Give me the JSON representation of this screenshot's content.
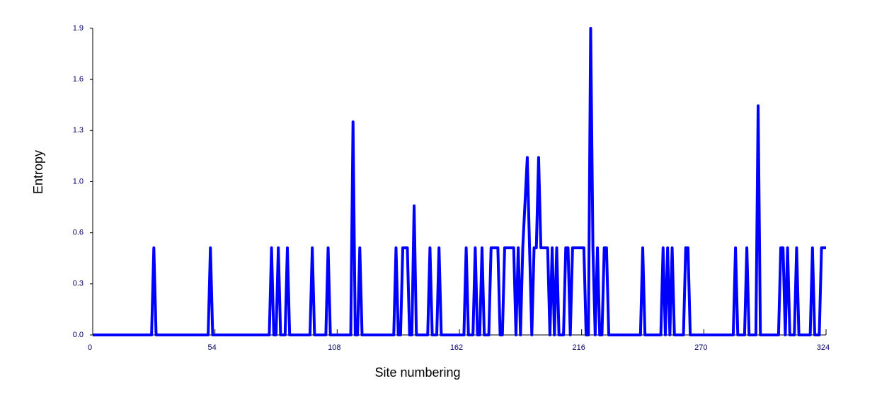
{
  "chart_data": {
    "type": "line",
    "x_label": "Site numbering",
    "y_label": "Entropy",
    "xlim": [
      0,
      324
    ],
    "ylim": [
      0,
      1.9
    ],
    "xticks": [
      0,
      54,
      108,
      162,
      216,
      270,
      324
    ],
    "yticks": [
      {
        "value": 0,
        "label": "0.0"
      },
      {
        "value": 0.3167,
        "label": "0.3"
      },
      {
        "value": 0.6333,
        "label": "0.6"
      },
      {
        "value": 0.95,
        "label": "1.0"
      },
      {
        "value": 1.2667,
        "label": "1.3"
      },
      {
        "value": 1.5833,
        "label": "1.6"
      },
      1.9
    ],
    "grid": false,
    "series": [
      {
        "color": "#0000ff",
        "x": [
          0,
          26,
          27,
          28,
          51,
          52,
          53,
          78,
          79,
          80,
          81,
          82,
          83,
          85,
          86,
          87,
          96,
          97,
          98,
          103,
          104,
          105,
          114,
          115,
          116,
          117,
          118,
          119,
          133,
          134,
          135,
          136,
          137,
          139,
          140,
          141,
          142,
          143,
          148,
          149,
          150,
          152,
          153,
          154,
          164,
          165,
          166,
          168,
          169,
          170,
          171,
          172,
          173,
          175,
          176,
          179,
          180,
          181,
          182,
          186,
          187,
          188,
          189,
          190,
          192,
          193,
          194,
          195,
          196,
          197,
          198,
          201,
          202,
          203,
          204,
          205,
          206,
          208,
          209,
          210,
          211,
          212,
          217,
          218,
          219,
          220,
          221,
          222,
          223,
          224,
          225,
          226,
          227,
          228,
          242,
          243,
          244,
          251,
          252,
          253,
          254,
          255,
          256,
          257,
          261,
          262,
          263,
          264,
          283,
          284,
          285,
          288,
          289,
          290,
          293,
          294,
          295,
          303,
          304,
          305,
          306,
          307,
          308,
          310,
          311,
          312,
          317,
          318,
          319,
          321,
          322,
          324
        ],
        "values": [
          0,
          0,
          0.54,
          0,
          0,
          0.54,
          0,
          0,
          0.54,
          0,
          0,
          0.54,
          0,
          0,
          0.54,
          0,
          0,
          0.54,
          0,
          0,
          0.54,
          0,
          0,
          1.32,
          0,
          0,
          0.54,
          0,
          0,
          0.54,
          0,
          0,
          0.54,
          0.54,
          0,
          0,
          0.8,
          0,
          0,
          0.54,
          0,
          0,
          0.54,
          0,
          0,
          0.54,
          0,
          0,
          0.54,
          0,
          0,
          0.54,
          0,
          0,
          0.54,
          0.54,
          0,
          0,
          0.54,
          0.54,
          0,
          0.54,
          0,
          0.54,
          1.1,
          0.54,
          0,
          0.54,
          0.54,
          1.1,
          0.54,
          0.54,
          0,
          0.54,
          0,
          0.54,
          0,
          0,
          0.54,
          0.54,
          0,
          0.54,
          0.54,
          0,
          0,
          1.9,
          0.54,
          0,
          0.54,
          0,
          0,
          0.54,
          0.54,
          0,
          0,
          0.54,
          0,
          0,
          0.54,
          0,
          0.54,
          0,
          0.54,
          0,
          0,
          0.54,
          0.54,
          0,
          0,
          0.54,
          0,
          0,
          0.54,
          0,
          0,
          1.42,
          0,
          0,
          0.54,
          0.54,
          0,
          0.54,
          0,
          0,
          0.54,
          0,
          0,
          0.54,
          0,
          0,
          0.54,
          0.54
        ]
      }
    ]
  }
}
